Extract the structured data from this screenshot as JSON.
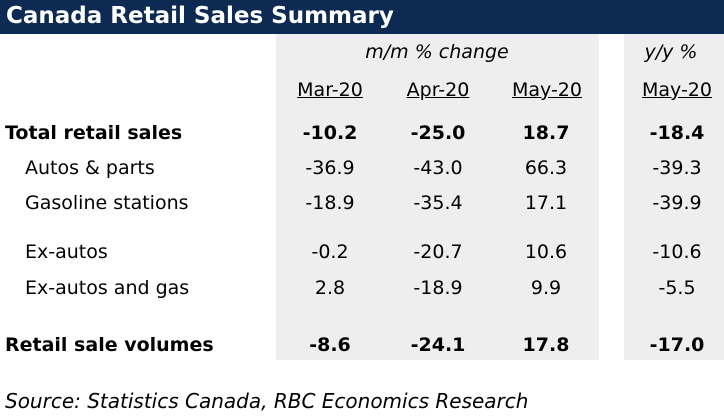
{
  "title": "Canada Retail Sales Summary",
  "colors": {
    "title_bg": "#0d2a52",
    "title_text": "#ffffff",
    "shade": "#eeeeee"
  },
  "header": {
    "mm_label": "m/m % change",
    "yy_label": "y/y %",
    "columns": [
      "Mar-20",
      "Apr-20",
      "May-20",
      "May-20"
    ]
  },
  "rows": [
    {
      "label": "Total retail sales",
      "values": [
        "-10.2",
        "-25.0",
        "18.7",
        "-18.4"
      ],
      "bold": true
    },
    {
      "label": "Autos & parts",
      "values": [
        "-36.9",
        "-43.0",
        "66.3",
        "-39.3"
      ],
      "bold": false
    },
    {
      "label": "Gasoline stations",
      "values": [
        "-18.9",
        "-35.4",
        "17.1",
        "-39.9"
      ],
      "bold": false
    },
    {
      "label": "Ex-autos",
      "values": [
        "-0.2",
        "-20.7",
        "10.6",
        "-10.6"
      ],
      "bold": false
    },
    {
      "label": "Ex-autos and gas",
      "values": [
        "2.8",
        "-18.9",
        "9.9",
        "-5.5"
      ],
      "bold": false
    },
    {
      "label": "Retail sale volumes",
      "values": [
        "-8.6",
        "-24.1",
        "17.8",
        "-17.0"
      ],
      "bold": true
    }
  ],
  "source": "Source:  Statistics Canada, RBC Economics Research"
}
